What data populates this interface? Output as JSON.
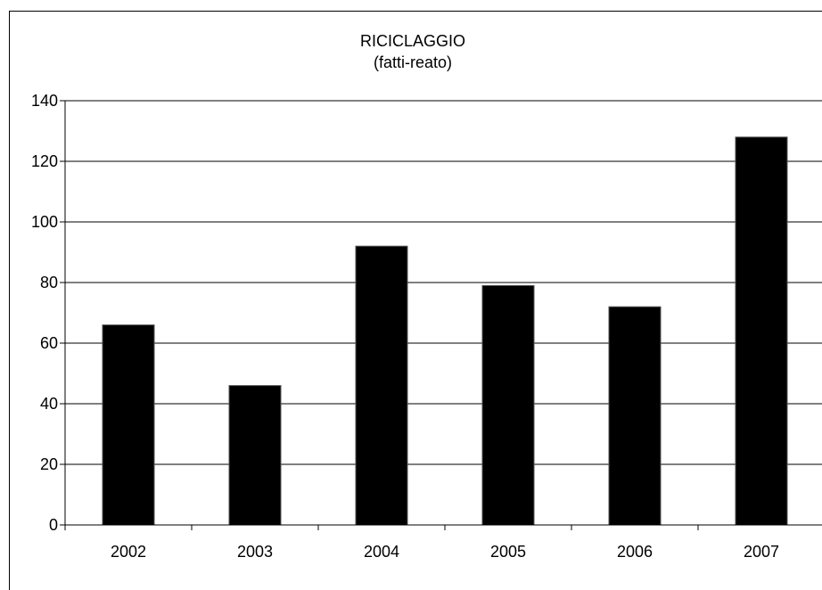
{
  "chart_data": {
    "type": "bar",
    "title": "RICICLAGGIO",
    "subtitle": "(fatti-reato)",
    "categories": [
      "2002",
      "2003",
      "2004",
      "2005",
      "2006",
      "2007"
    ],
    "values": [
      66,
      46,
      92,
      79,
      72,
      128
    ],
    "ylim": [
      0,
      140
    ],
    "yticks": [
      0,
      20,
      40,
      60,
      80,
      100,
      120,
      140
    ],
    "grid": true,
    "legend": "none",
    "bar_color": "#000000"
  }
}
